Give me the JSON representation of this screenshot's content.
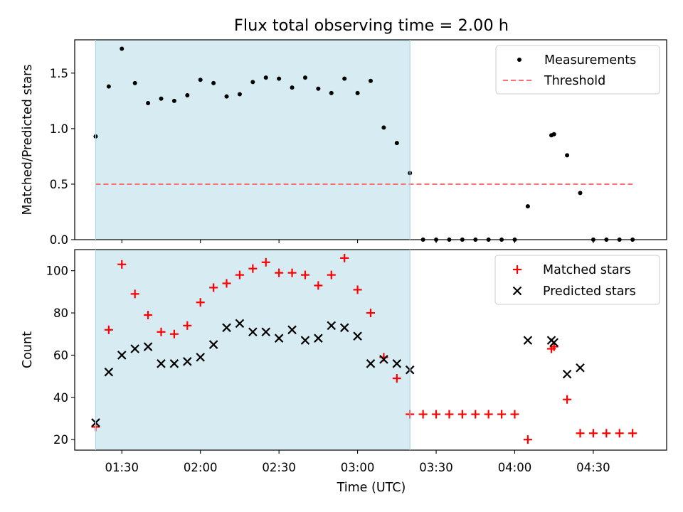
{
  "title": "Flux total observing time = 2.00 h",
  "xlabel": "Time (UTC)",
  "x_tick_labels": [
    "01:30",
    "02:00",
    "02:30",
    "03:00",
    "03:30",
    "04:00",
    "04:30"
  ],
  "colors": {
    "shade": "#add8e6",
    "measurements": "#000000",
    "threshold": "#ff6f6f",
    "matched": "#ff0000",
    "predicted": "#000000"
  },
  "chart_data": [
    {
      "type": "scatter",
      "ylabel": "Matched/Predicted stars",
      "xlim": [
        "01:12",
        "04:58"
      ],
      "ylim": [
        0,
        1.8
      ],
      "y_ticks": [
        "0.0",
        "0.5",
        "1.0",
        "1.5"
      ],
      "shaded_interval": [
        "01:20",
        "03:20"
      ],
      "threshold": {
        "name": "Threshold",
        "value": 0.5,
        "x_range": [
          "01:20",
          "04:45"
        ]
      },
      "legend": {
        "position": "upper right",
        "entries": [
          "Measurements",
          "Threshold"
        ]
      },
      "series": [
        {
          "name": "Measurements",
          "points": [
            [
              "01:20",
              0.93
            ],
            [
              "01:25",
              1.38
            ],
            [
              "01:30",
              1.72
            ],
            [
              "01:35",
              1.41
            ],
            [
              "01:40",
              1.23
            ],
            [
              "01:45",
              1.27
            ],
            [
              "01:50",
              1.25
            ],
            [
              "01:55",
              1.3
            ],
            [
              "02:00",
              1.44
            ],
            [
              "02:05",
              1.41
            ],
            [
              "02:10",
              1.29
            ],
            [
              "02:15",
              1.31
            ],
            [
              "02:20",
              1.42
            ],
            [
              "02:25",
              1.46
            ],
            [
              "02:30",
              1.45
            ],
            [
              "02:35",
              1.37
            ],
            [
              "02:40",
              1.46
            ],
            [
              "02:45",
              1.36
            ],
            [
              "02:50",
              1.32
            ],
            [
              "02:55",
              1.45
            ],
            [
              "03:00",
              1.32
            ],
            [
              "03:05",
              1.43
            ],
            [
              "03:10",
              1.01
            ],
            [
              "03:15",
              0.87
            ],
            [
              "03:20",
              0.6
            ],
            [
              "03:25",
              0.0
            ],
            [
              "03:30",
              0.0
            ],
            [
              "03:35",
              0.0
            ],
            [
              "03:40",
              0.0
            ],
            [
              "03:45",
              0.0
            ],
            [
              "03:50",
              0.0
            ],
            [
              "03:55",
              0.0
            ],
            [
              "04:00",
              0.0
            ],
            [
              "04:05",
              0.3
            ],
            [
              "04:14",
              0.94
            ],
            [
              "04:15",
              0.95
            ],
            [
              "04:20",
              0.76
            ],
            [
              "04:25",
              0.42
            ],
            [
              "04:30",
              0.0
            ],
            [
              "04:35",
              0.0
            ],
            [
              "04:40",
              0.0
            ],
            [
              "04:45",
              0.0
            ]
          ]
        }
      ]
    },
    {
      "type": "scatter",
      "ylabel": "Count",
      "xlim": [
        "01:12",
        "04:58"
      ],
      "ylim": [
        15,
        110
      ],
      "y_ticks": [
        "20",
        "40",
        "60",
        "80",
        "100"
      ],
      "shaded_interval": [
        "01:20",
        "03:20"
      ],
      "legend": {
        "position": "upper right",
        "entries": [
          "Matched stars",
          "Predicted stars"
        ]
      },
      "series": [
        {
          "name": "Matched stars",
          "marker": "+",
          "points": [
            [
              "01:20",
              26
            ],
            [
              "01:25",
              72
            ],
            [
              "01:30",
              103
            ],
            [
              "01:35",
              89
            ],
            [
              "01:40",
              79
            ],
            [
              "01:45",
              71
            ],
            [
              "01:50",
              70
            ],
            [
              "01:55",
              74
            ],
            [
              "02:00",
              85
            ],
            [
              "02:05",
              92
            ],
            [
              "02:10",
              94
            ],
            [
              "02:15",
              98
            ],
            [
              "02:20",
              101
            ],
            [
              "02:25",
              104
            ],
            [
              "02:30",
              99
            ],
            [
              "02:35",
              99
            ],
            [
              "02:40",
              98
            ],
            [
              "02:45",
              93
            ],
            [
              "02:50",
              98
            ],
            [
              "02:55",
              106
            ],
            [
              "03:00",
              91
            ],
            [
              "03:05",
              80
            ],
            [
              "03:10",
              59
            ],
            [
              "03:15",
              49
            ],
            [
              "03:20",
              32
            ],
            [
              "03:25",
              32
            ],
            [
              "03:30",
              32
            ],
            [
              "03:35",
              32
            ],
            [
              "03:40",
              32
            ],
            [
              "03:45",
              32
            ],
            [
              "03:50",
              32
            ],
            [
              "03:55",
              32
            ],
            [
              "04:00",
              32
            ],
            [
              "04:05",
              20
            ],
            [
              "04:14",
              63
            ],
            [
              "04:15",
              64
            ],
            [
              "04:20",
              39
            ],
            [
              "04:25",
              23
            ],
            [
              "04:30",
              23
            ],
            [
              "04:35",
              23
            ],
            [
              "04:40",
              23
            ],
            [
              "04:45",
              23
            ]
          ]
        },
        {
          "name": "Predicted stars",
          "marker": "x",
          "points": [
            [
              "01:20",
              28
            ],
            [
              "01:25",
              52
            ],
            [
              "01:30",
              60
            ],
            [
              "01:35",
              63
            ],
            [
              "01:40",
              64
            ],
            [
              "01:45",
              56
            ],
            [
              "01:50",
              56
            ],
            [
              "01:55",
              57
            ],
            [
              "02:00",
              59
            ],
            [
              "02:05",
              65
            ],
            [
              "02:10",
              73
            ],
            [
              "02:15",
              75
            ],
            [
              "02:20",
              71
            ],
            [
              "02:25",
              71
            ],
            [
              "02:30",
              68
            ],
            [
              "02:35",
              72
            ],
            [
              "02:40",
              67
            ],
            [
              "02:45",
              68
            ],
            [
              "02:50",
              74
            ],
            [
              "02:55",
              73
            ],
            [
              "03:00",
              69
            ],
            [
              "03:05",
              56
            ],
            [
              "03:10",
              58
            ],
            [
              "03:15",
              56
            ],
            [
              "03:20",
              53
            ],
            [
              "04:05",
              67
            ],
            [
              "04:14",
              67
            ],
            [
              "04:15",
              66
            ],
            [
              "04:20",
              51
            ],
            [
              "04:25",
              54
            ]
          ]
        }
      ]
    }
  ]
}
